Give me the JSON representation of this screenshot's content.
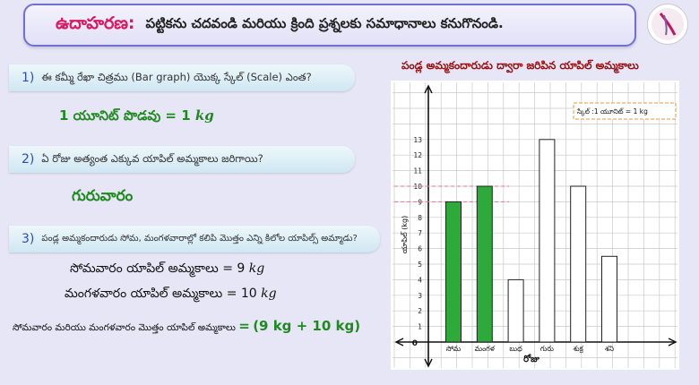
{
  "header": {
    "lead": "ఉదాహరణ:",
    "text": "పట్టికను చదవండి మరియు క్రింది ప్రశ్నలకు సమాధానాలు కనుగొనండి."
  },
  "questions": [
    {
      "num": "1)",
      "text": "ఈ కమ్మీ రేఖా చిత్రము (Bar graph) యొక్క స్కేల్ (Scale) ఎంత?"
    },
    {
      "num": "2)",
      "text": "ఏ రోజు అత్యంత ఎక్కువ యాపిల్ అమ్మకాలు జరిగాయి?"
    },
    {
      "num": "3)",
      "text": "పండ్ల అమ్మకందారుడు సోమ, మంగళవారాల్లో కలిపి మొత్తం ఎన్ని కిలోల యాపిల్స్ అమ్మాడు?"
    }
  ],
  "answers": {
    "q1": {
      "label": "1 యూనిట్ పొడవు",
      "eq": "=",
      "value": "1",
      "unit": "kg"
    },
    "q2": "గురువారం",
    "q3": [
      {
        "label": "సోమవారం యాపిల్ అమ్మకాలు",
        "eq": "=",
        "value": "9",
        "unit": "kg"
      },
      {
        "label": "మంగళవారం యాపిల్ అమ్మకాలు",
        "eq": "=",
        "value": "10",
        "unit": "kg"
      }
    ],
    "q3_total": {
      "label": "సోమవారం మరియు మంగళవారం మొత్తం యాపిల్ అమ్మకాలు",
      "eq": "=",
      "expr": "(9 kg + 10 kg)"
    }
  },
  "colors": {
    "highlight_bar": "#2eaa3a",
    "bar": "#ffffff",
    "accent": "#d81b60"
  },
  "chart_data": {
    "type": "bar",
    "title": "పండ్ల అమ్మకందారుడు ద్వారా జరిపిన యాపిల్ అమ్మకాలు",
    "xlabel": "రోజు",
    "ylabel": "యాపిల్ (kg)",
    "scale_note": "స్కేల్ :1 యూనిట్ = 1 kg",
    "categories": [
      "సోమ",
      "మంగళ",
      "బుధ",
      "గురు",
      "శుక్ర",
      "శని"
    ],
    "values": [
      9,
      10,
      4,
      13,
      10,
      5.5
    ],
    "highlighted": [
      0,
      1
    ],
    "ylim": [
      0,
      13
    ],
    "yticks": [
      1,
      2,
      3,
      4,
      5,
      6,
      7,
      8,
      9,
      10,
      11,
      12,
      13
    ],
    "origin_label": "0",
    "reference_lines": [
      9,
      10
    ],
    "grid": true
  }
}
